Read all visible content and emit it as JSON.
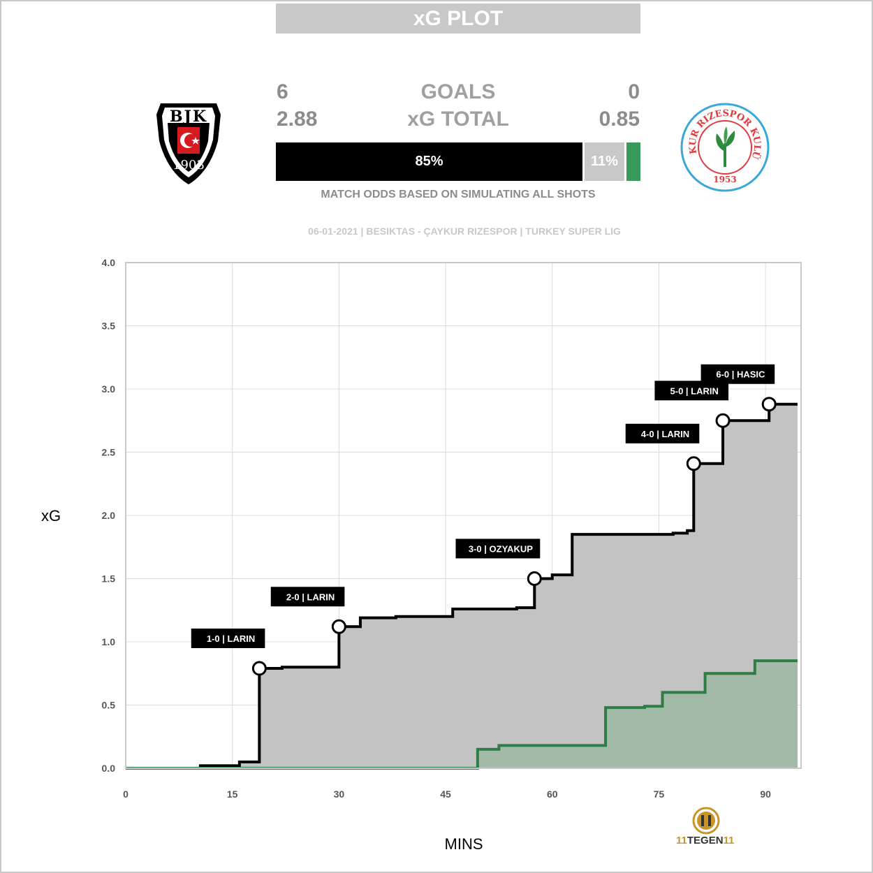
{
  "header": {
    "title": "xG PLOT",
    "home_goals": "6",
    "away_goals": "0",
    "goals_label": "GOALS",
    "home_xg": "2.88",
    "away_xg": "0.85",
    "xg_label": "xG TOTAL",
    "home_win_pct": "85%",
    "draw_pct": "11%",
    "home_win_fraction": 0.85,
    "draw_fraction": 0.11,
    "away_win_fraction": 0.04,
    "odds_note": "MATCH ODDS BASED ON SIMULATING ALL SHOTS",
    "match_line": "06-01-2021 | BESIKTAS - ÇAYKUR RIZESPOR | TURKEY SUPER LIG"
  },
  "crests": {
    "home_text": "BJK",
    "home_year": "1903",
    "away_ring": "ÇAYKUR RIZESPOR KULÜBÜ",
    "away_year": "1953"
  },
  "colors": {
    "home": "#000000",
    "home_fill": "#c0c0c0",
    "away": "#2e7d46",
    "away_fill": "#9cb8a2",
    "draw": "#c8c8c8",
    "away_odds": "#3a9a5c"
  },
  "chart_data": {
    "type": "line",
    "xlabel": "MINS",
    "ylabel": "xG",
    "xlim": [
      0,
      95
    ],
    "ylim": [
      0,
      4.0
    ],
    "xticks": [
      0,
      15,
      30,
      45,
      60,
      75,
      90
    ],
    "yticks": [
      "0.0",
      "0.5",
      "1.0",
      "1.5",
      "2.0",
      "2.5",
      "3.0",
      "3.5",
      "4.0"
    ],
    "grid": true,
    "series": [
      {
        "team": "home",
        "steps": [
          [
            0,
            0.0
          ],
          [
            10.5,
            0.02
          ],
          [
            16,
            0.05
          ],
          [
            18.8,
            0.79
          ],
          [
            22,
            0.8
          ],
          [
            30,
            1.12
          ],
          [
            33,
            1.19
          ],
          [
            38,
            1.2
          ],
          [
            46,
            1.26
          ],
          [
            55,
            1.27
          ],
          [
            57.5,
            1.5
          ],
          [
            60,
            1.53
          ],
          [
            62.8,
            1.85
          ],
          [
            77,
            1.86
          ],
          [
            79,
            1.88
          ],
          [
            79.9,
            2.41
          ],
          [
            84,
            2.75
          ],
          [
            90.5,
            2.88
          ],
          [
            94.5,
            2.88
          ]
        ]
      },
      {
        "team": "away",
        "steps": [
          [
            0,
            0.0
          ],
          [
            49.5,
            0.15
          ],
          [
            52.5,
            0.18
          ],
          [
            67.5,
            0.48
          ],
          [
            73,
            0.49
          ],
          [
            75.5,
            0.6
          ],
          [
            81.5,
            0.75
          ],
          [
            88.5,
            0.85
          ],
          [
            94.5,
            0.85
          ]
        ]
      }
    ],
    "goals": [
      {
        "minute": 18.8,
        "xg": 0.79,
        "label": "1-0 | LARIN"
      },
      {
        "minute": 30,
        "xg": 1.12,
        "label": "2-0 | LARIN"
      },
      {
        "minute": 57.5,
        "xg": 1.5,
        "label": "3-0 | OZYAKUP"
      },
      {
        "minute": 79.9,
        "xg": 2.41,
        "label": "4-0 | LARIN"
      },
      {
        "minute": 84,
        "xg": 2.75,
        "label": "5-0 | LARIN"
      },
      {
        "minute": 90.5,
        "xg": 2.88,
        "label": "6-0 | HASIC"
      }
    ]
  },
  "brand": {
    "prefix": "11",
    "name": "TEGEN",
    "suffix": "11"
  }
}
